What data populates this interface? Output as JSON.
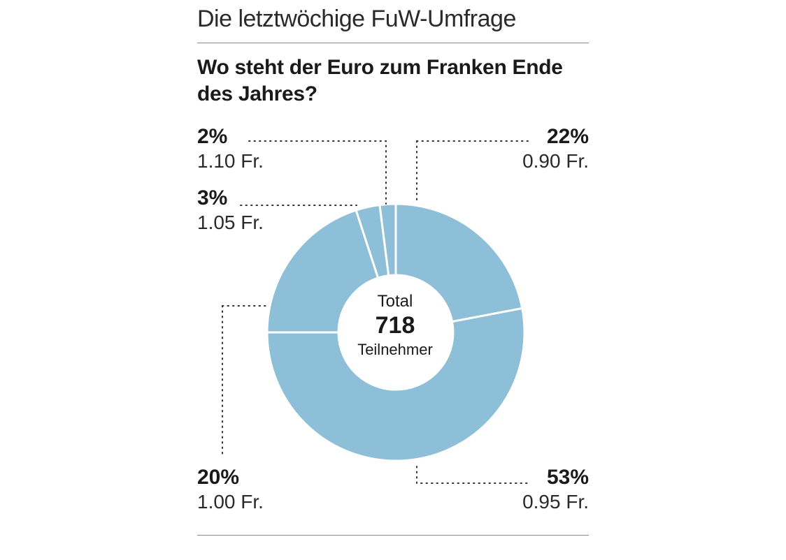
{
  "header": {
    "kicker": "Die letztwöchige FuW-Umfrage",
    "title": "Wo steht der Euro zum Franken Ende des Jahres?"
  },
  "center": {
    "total_label": "Total",
    "total_value": "718",
    "total_unit": "Teilnehmer"
  },
  "colors": {
    "slice": "#8dbfd8",
    "separator": "#ffffff",
    "leader": "#333333"
  },
  "chart_data": {
    "type": "pie",
    "donut": true,
    "title": "Wo steht der Euro zum Franken Ende des Jahres?",
    "total": 718,
    "slices": [
      {
        "label": "0.90 Fr.",
        "value": 22,
        "pct_label": "22%"
      },
      {
        "label": "0.95 Fr.",
        "value": 53,
        "pct_label": "53%"
      },
      {
        "label": "1.00 Fr.",
        "value": 20,
        "pct_label": "20%"
      },
      {
        "label": "1.05 Fr.",
        "value": 3,
        "pct_label": "3%"
      },
      {
        "label": "1.10 Fr.",
        "value": 2,
        "pct_label": "2%"
      }
    ]
  }
}
